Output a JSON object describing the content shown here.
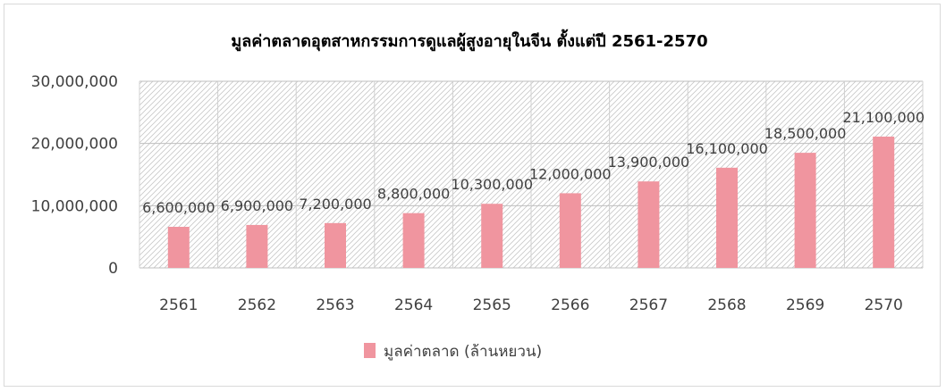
{
  "chart_data": {
    "type": "bar",
    "title": "มูลค่าตลาดอุตสาหกรรมการดูแลผู้สูงอายุในจีน ตั้งแต่ปี 2561-2570",
    "xlabel": "",
    "ylabel": "",
    "categories": [
      "2561",
      "2562",
      "2563",
      "2564",
      "2565",
      "2566",
      "2567",
      "2568",
      "2569",
      "2570"
    ],
    "series": [
      {
        "name": "มูลค่าตลาด (ล้านหยวน)",
        "values": [
          6600000,
          6900000,
          7200000,
          8800000,
          10300000,
          12000000,
          13900000,
          16100000,
          18500000,
          21100000
        ],
        "labels": [
          "6,600,000",
          "6,900,000",
          "7,200,000",
          "8,800,000",
          "10,300,000",
          "12,000,000",
          "13,900,000",
          "16,100,000",
          "18,500,000",
          "21,100,000"
        ],
        "color": "#f0959f"
      }
    ],
    "ylim": [
      0,
      30000000
    ],
    "yticks": [
      0,
      10000000,
      20000000,
      30000000
    ],
    "ytick_labels": [
      "0",
      "10,000,000",
      "20,000,000",
      "30,000,000"
    ],
    "grid": true,
    "plot_background": "hatched",
    "legend_position": "bottom"
  }
}
